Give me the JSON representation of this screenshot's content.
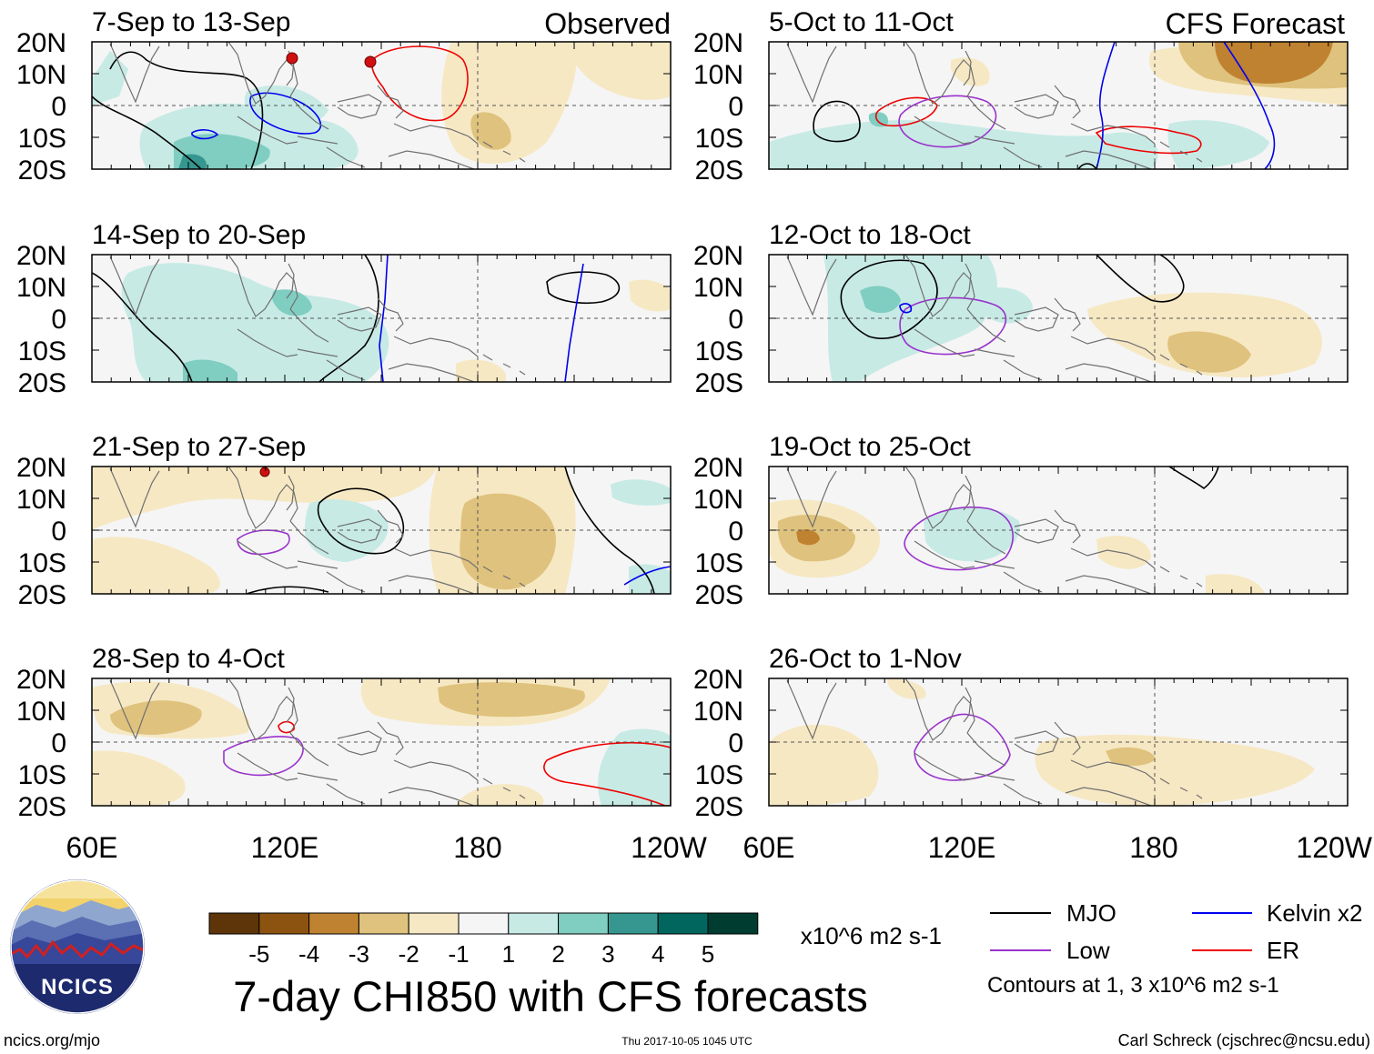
{
  "header": {
    "observed_label": "Observed",
    "forecast_label": "CFS Forecast"
  },
  "panels": [
    {
      "title": "7-Sep to 13-Sep"
    },
    {
      "title": "14-Sep to 20-Sep"
    },
    {
      "title": "21-Sep to 27-Sep"
    },
    {
      "title": "28-Sep to 4-Oct"
    },
    {
      "title": "5-Oct to 11-Oct"
    },
    {
      "title": "12-Oct to 18-Oct"
    },
    {
      "title": "19-Oct to 25-Oct"
    },
    {
      "title": "26-Oct to 1-Nov"
    }
  ],
  "axes": {
    "lat_labels": [
      "20N",
      "10N",
      "0",
      "10S",
      "20S"
    ],
    "lon_labels": [
      "60E",
      "120E",
      "180",
      "120W"
    ]
  },
  "colorbar": {
    "colors": [
      "#5e3508",
      "#8c5310",
      "#bf8230",
      "#dfc27d",
      "#f6e8c3",
      "#f5f5f5",
      "#c7eae5",
      "#80cdc1",
      "#35978f",
      "#01665e",
      "#003c30"
    ],
    "tick_labels": [
      "-5",
      "-4",
      "-3",
      "-2",
      "-1",
      "1",
      "2",
      "3",
      "4",
      "5"
    ],
    "units": "x10^6 m2 s-1"
  },
  "title": "7-day CHI850 with CFS forecasts",
  "legend": {
    "items": [
      {
        "label": "MJO",
        "color": "#000000"
      },
      {
        "label": "Low",
        "color": "#9932cc"
      },
      {
        "label": "Kelvin x2",
        "color": "#0000ee"
      },
      {
        "label": "ER",
        "color": "#ee0000"
      }
    ],
    "contour_note": "Contours at 1, 3 x10^6 m2 s-1"
  },
  "logo": {
    "text": "NCICS"
  },
  "footer": {
    "website": "ncics.org/mjo",
    "timestamp": "Thu 2017-10-05 1045 UTC",
    "author": "Carl Schreck (cjschrec@ncsu.edu)"
  }
}
